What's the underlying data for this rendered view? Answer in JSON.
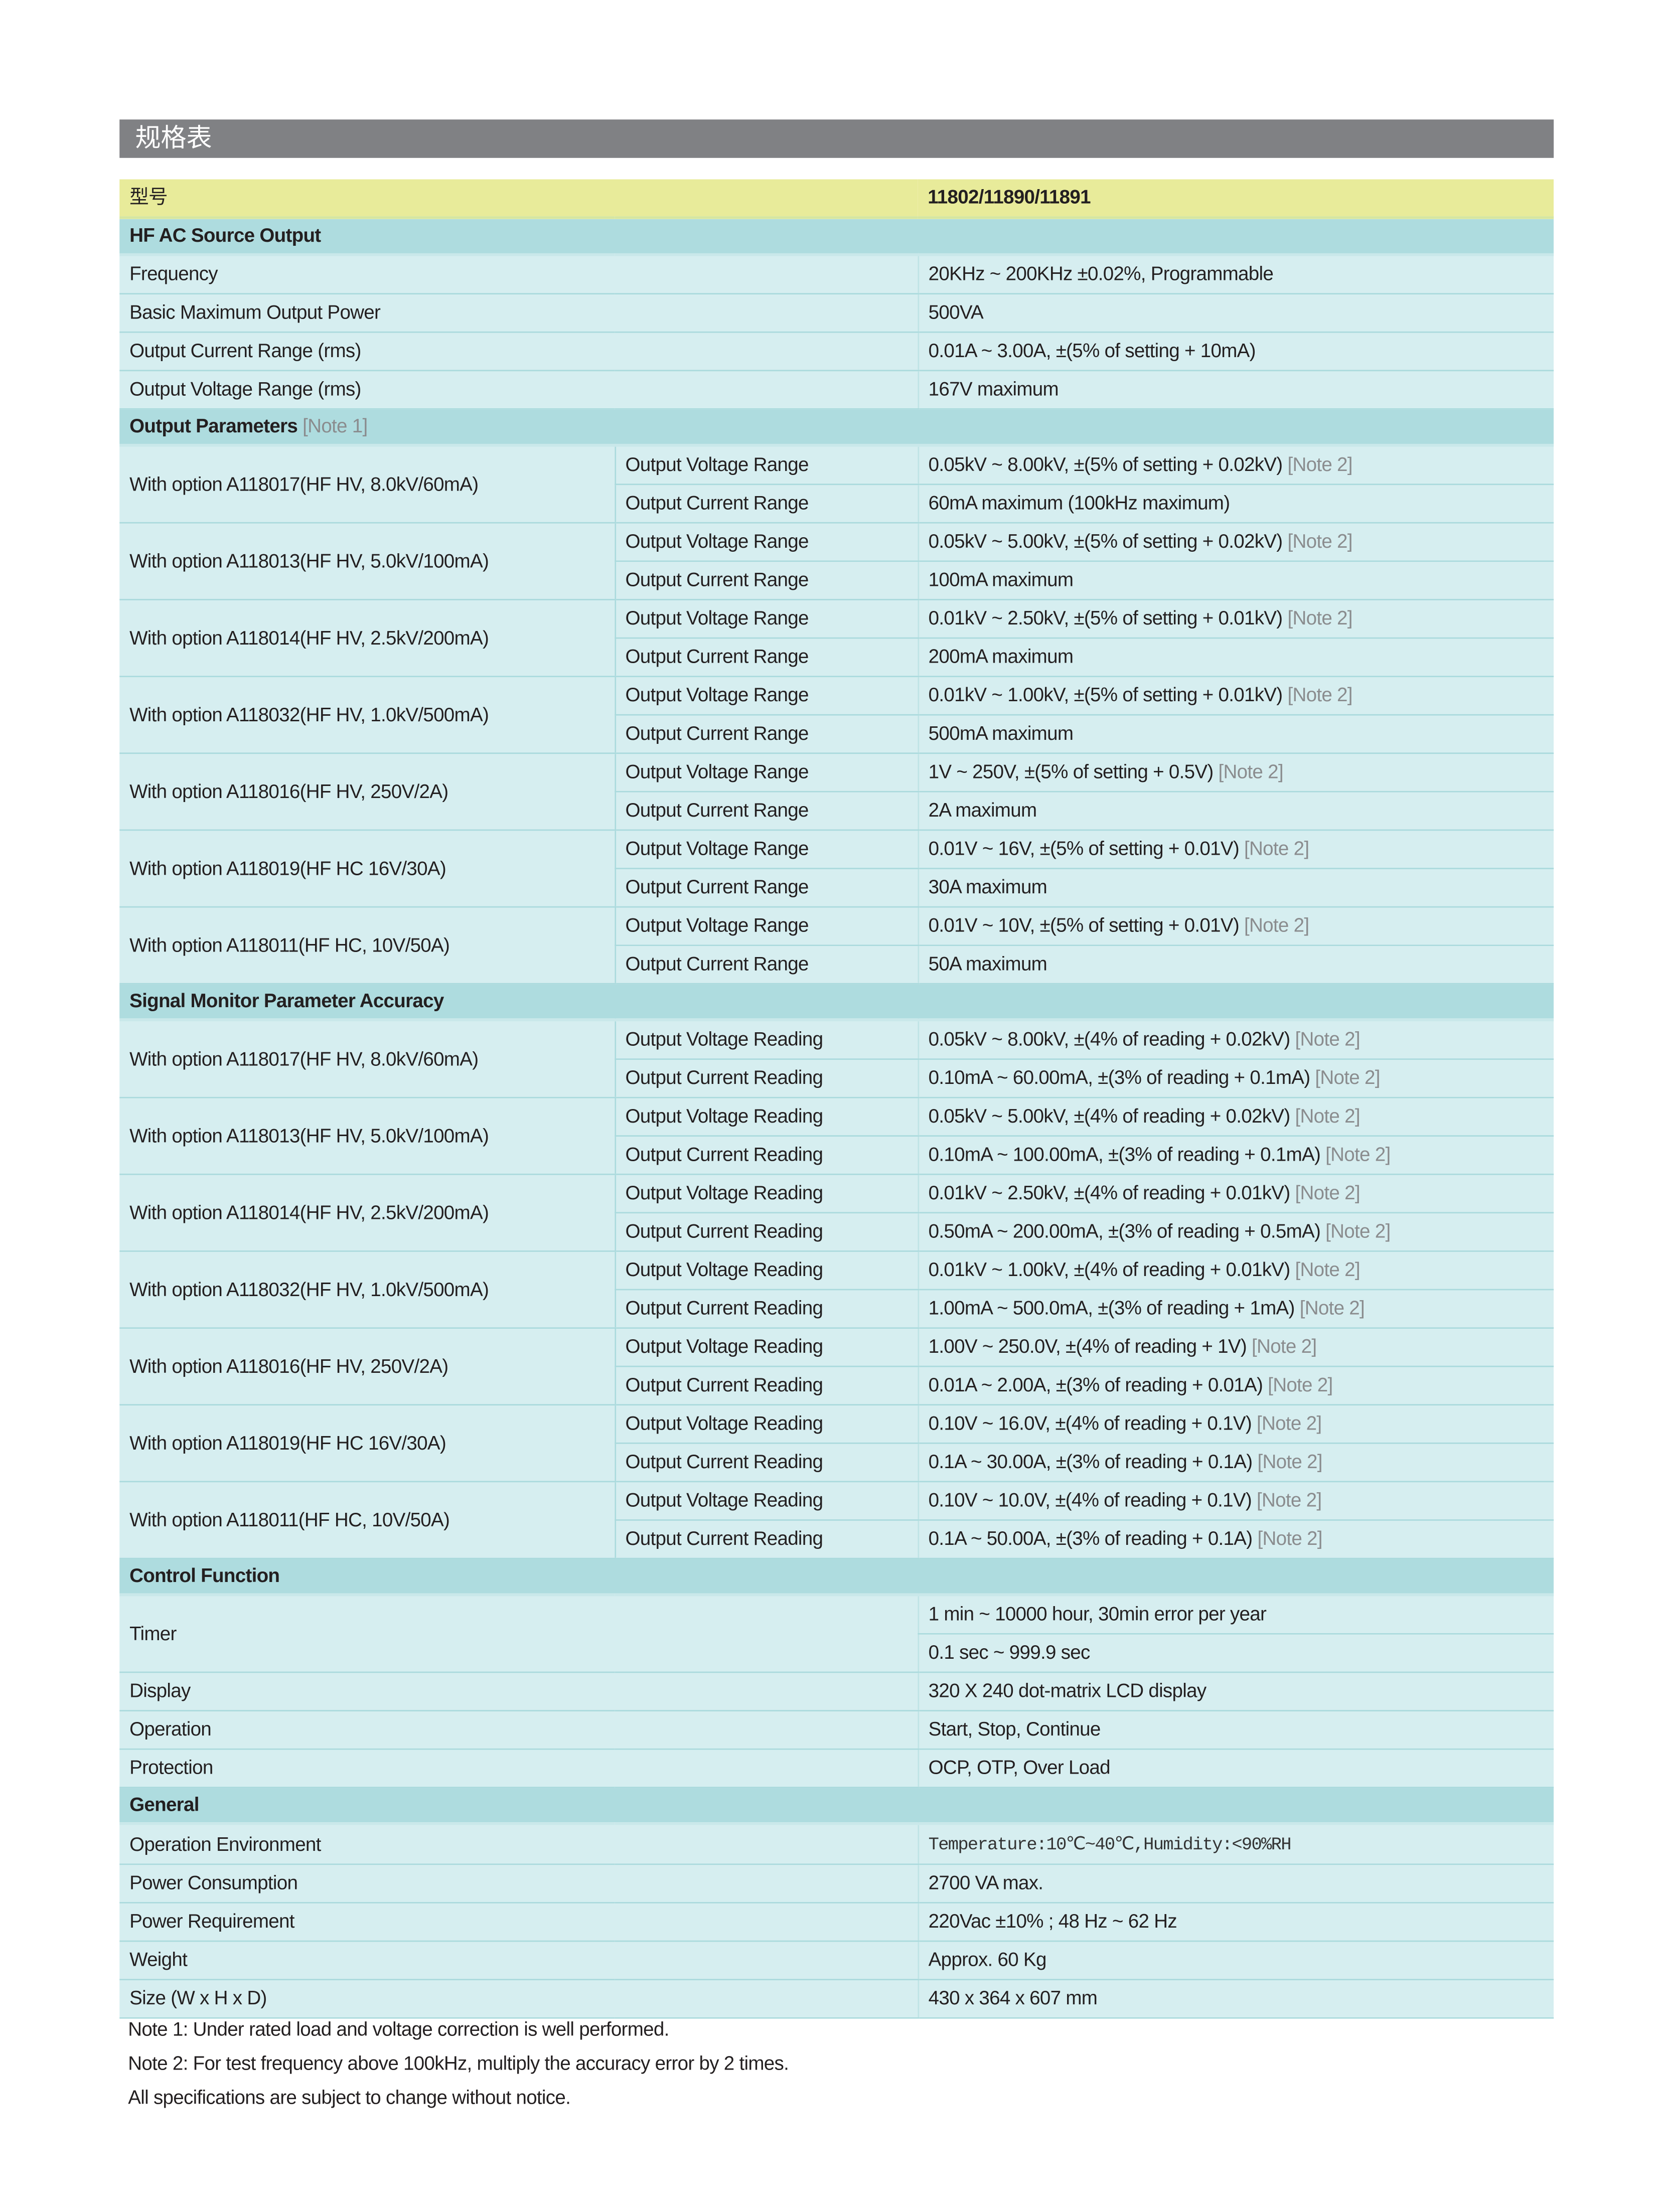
{
  "title": "规格表",
  "model": {
    "label": "型号",
    "value": "11802/11890/11891"
  },
  "sections": [
    {
      "title": "HF AC Source Output",
      "note": "",
      "rows": [
        {
          "label": "Frequency",
          "values": [
            {
              "text": "20KHz ~ 200KHz ±0.02%, Programmable"
            }
          ]
        },
        {
          "label": "Basic Maximum Output Power",
          "values": [
            {
              "text": "500VA"
            }
          ]
        },
        {
          "label": "Output Current Range (rms)",
          "values": [
            {
              "text": "0.01A ~ 3.00A, ±(5% of setting + 10mA)"
            }
          ]
        },
        {
          "label": "Output Voltage Range (rms)",
          "values": [
            {
              "text": "167V maximum"
            }
          ]
        }
      ]
    },
    {
      "title": "Output Parameters",
      "note": "[Note 1]",
      "rows": [
        {
          "label": "With option  A118017(HF HV, 8.0kV/60mA)",
          "sub": [
            "Output Voltage Range",
            "Output Current Range"
          ],
          "values": [
            {
              "text": "0.05kV ~ 8.00kV, ±(5% of setting + 0.02kV)",
              "note": "[Note 2]"
            },
            {
              "text": "60mA maximum (100kHz maximum)"
            }
          ]
        },
        {
          "label": "With option  A118013(HF HV, 5.0kV/100mA)",
          "sub": [
            "Output Voltage Range",
            "Output Current Range"
          ],
          "values": [
            {
              "text": "0.05kV ~ 5.00kV, ±(5% of setting + 0.02kV)",
              "note": "[Note 2]"
            },
            {
              "text": "100mA maximum"
            }
          ]
        },
        {
          "label": "With option  A118014(HF HV, 2.5kV/200mA)",
          "sub": [
            "Output Voltage Range",
            "Output Current Range"
          ],
          "values": [
            {
              "text": "0.01kV ~ 2.50kV, ±(5% of setting + 0.01kV)",
              "note": "[Note 2]"
            },
            {
              "text": "200mA maximum"
            }
          ]
        },
        {
          "label": "With option  A118032(HF HV, 1.0kV/500mA)",
          "sub": [
            "Output Voltage Range",
            "Output Current Range"
          ],
          "values": [
            {
              "text": "0.01kV ~ 1.00kV, ±(5% of setting + 0.01kV)",
              "note": "[Note 2]"
            },
            {
              "text": "500mA maximum"
            }
          ]
        },
        {
          "label": "With option  A118016(HF HV, 250V/2A)",
          "sub": [
            "Output Voltage Range",
            "Output Current Range"
          ],
          "values": [
            {
              "text": "1V ~ 250V, ±(5% of setting + 0.5V)",
              "note": "[Note 2]"
            },
            {
              "text": "2A maximum"
            }
          ]
        },
        {
          "label": "With option  A118019(HF HC 16V/30A)",
          "sub": [
            "Output Voltage Range",
            "Output Current Range"
          ],
          "values": [
            {
              "text": "0.01V ~ 16V, ±(5% of setting + 0.01V)",
              "note": "[Note 2]"
            },
            {
              "text": "30A maximum"
            }
          ]
        },
        {
          "label": "With option  A118011(HF HC, 10V/50A)",
          "sub": [
            "Output Voltage Range",
            "Output Current Range"
          ],
          "values": [
            {
              "text": "0.01V ~ 10V, ±(5% of setting + 0.01V)",
              "note": "[Note 2]"
            },
            {
              "text": "50A maximum"
            }
          ]
        }
      ]
    },
    {
      "title": "Signal Monitor Parameter Accuracy",
      "note": "",
      "rows": [
        {
          "label": "With option  A118017(HF HV, 8.0kV/60mA)",
          "sub": [
            "Output Voltage Reading",
            "Output Current Reading"
          ],
          "values": [
            {
              "text": "0.05kV ~ 8.00kV, ±(4% of reading + 0.02kV)",
              "note": "[Note 2]"
            },
            {
              "text": "0.10mA ~ 60.00mA, ±(3% of reading + 0.1mA)",
              "note": "[Note 2]"
            }
          ]
        },
        {
          "label": "With option  A118013(HF HV, 5.0kV/100mA)",
          "sub": [
            "Output Voltage Reading",
            "Output Current Reading"
          ],
          "values": [
            {
              "text": "0.05kV ~ 5.00kV, ±(4% of reading + 0.02kV)",
              "note": "[Note 2]"
            },
            {
              "text": "0.10mA ~ 100.00mA, ±(3% of reading + 0.1mA)",
              "note": "[Note 2]"
            }
          ]
        },
        {
          "label": "With option  A118014(HF HV, 2.5kV/200mA)",
          "sub": [
            "Output Voltage Reading",
            "Output Current Reading"
          ],
          "values": [
            {
              "text": "0.01kV ~ 2.50kV, ±(4% of reading + 0.01kV)",
              "note": "[Note 2]"
            },
            {
              "text": "0.50mA ~ 200.00mA, ±(3% of reading + 0.5mA)",
              "note": "[Note 2]"
            }
          ]
        },
        {
          "label": "With option  A118032(HF HV, 1.0kV/500mA)",
          "sub": [
            "Output Voltage Reading",
            "Output Current Reading"
          ],
          "values": [
            {
              "text": "0.01kV ~ 1.00kV, ±(4% of reading + 0.01kV)",
              "note": "[Note 2]"
            },
            {
              "text": "1.00mA ~ 500.0mA, ±(3% of reading + 1mA)",
              "note": "[Note 2]"
            }
          ]
        },
        {
          "label": "With option  A118016(HF HV, 250V/2A)",
          "sub": [
            "Output Voltage Reading",
            "Output Current Reading"
          ],
          "values": [
            {
              "text": "1.00V ~ 250.0V, ±(4% of reading + 1V)",
              "note": "[Note 2]"
            },
            {
              "text": "0.01A ~ 2.00A, ±(3% of reading + 0.01A)",
              "note": "[Note 2]"
            }
          ]
        },
        {
          "label": "With option  A118019(HF HC 16V/30A)",
          "sub": [
            "Output Voltage Reading",
            "Output Current Reading"
          ],
          "values": [
            {
              "text": "0.10V ~ 16.0V, ±(4% of reading + 0.1V)",
              "note": "[Note 2]"
            },
            {
              "text": "0.1A ~ 30.00A, ±(3% of reading + 0.1A)",
              "note": "[Note 2]"
            }
          ]
        },
        {
          "label": "With option  A118011(HF HC, 10V/50A)",
          "sub": [
            "Output Voltage Reading",
            "Output Current Reading"
          ],
          "values": [
            {
              "text": "0.10V ~ 10.0V, ±(4% of reading + 0.1V)",
              "note": "[Note 2]"
            },
            {
              "text": "0.1A ~ 50.00A, ±(3% of reading + 0.1A)",
              "note": "[Note 2]"
            }
          ]
        }
      ]
    },
    {
      "title": "Control Function",
      "note": "",
      "rows": [
        {
          "label": "Timer",
          "values": [
            {
              "text": "1 min ~ 10000 hour, 30min error per year"
            },
            {
              "text": "0.1 sec ~ 999.9 sec"
            }
          ]
        },
        {
          "label": "Display",
          "values": [
            {
              "text": "320 X 240 dot-matrix LCD display"
            }
          ]
        },
        {
          "label": "Operation",
          "values": [
            {
              "text": "Start, Stop, Continue"
            }
          ]
        },
        {
          "label": "Protection",
          "values": [
            {
              "text": "OCP, OTP, Over Load"
            }
          ]
        }
      ]
    },
    {
      "title": "General",
      "note": "",
      "rows": [
        {
          "label": "Operation Environment",
          "values": [
            {
              "text": "Temperature:10℃~40℃,Humidity:<90%RH"
            }
          ]
        },
        {
          "label": "Power Consumption",
          "values": [
            {
              "text": "2700 VA max."
            }
          ]
        },
        {
          "label": "Power Requirement",
          "values": [
            {
              "text": "220Vac ±10% ; 48 Hz ~ 62 Hz"
            }
          ]
        },
        {
          "label": "Weight",
          "values": [
            {
              "text": "Approx. 60 Kg"
            }
          ]
        },
        {
          "label": "Size (W x H x D)",
          "values": [
            {
              "text": "430 x 364 x 607 mm"
            }
          ]
        }
      ]
    }
  ],
  "notes": [
    "Note 1: Under rated load and voltage correction is well performed.",
    "Note 2: For test frequency above 100kHz, multiply the accuracy error  by 2 times.",
    "All specifications are subject to change without notice."
  ]
}
